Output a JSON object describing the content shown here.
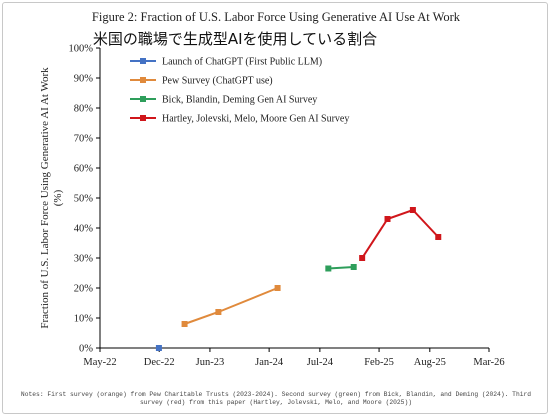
{
  "figure": {
    "title": "Figure 2: Fraction of U.S. Labor Force Using Generative AI Use At Work",
    "subtitle": "米国の職場で生成型AIを使用している割合",
    "notes": "Notes: First survey (orange) from Pew Charitable Trusts (2023-2024). Second survey (green) from Bick, Blandin, and Deming (2024). Third survey (red) from this paper (Hartley, Jolevski, Melo, and Moore (2025))"
  },
  "chart_data": {
    "type": "line",
    "title": "Figure 2: Fraction of U.S. Labor Force Using Generative AI Use At Work",
    "xlabel": "",
    "ylabel": "Fraction of U.S. Labor Force Using Generative AI At Work (%)",
    "ylim": [
      0,
      100
    ],
    "xlim": [
      "2022-05",
      "2026-03"
    ],
    "y_ticks": [
      "0%",
      "10%",
      "20%",
      "30%",
      "40%",
      "50%",
      "60%",
      "70%",
      "80%",
      "90%",
      "100%"
    ],
    "x_ticks": [
      {
        "date": "2022-05",
        "label": "May-22"
      },
      {
        "date": "2022-12",
        "label": "Dec-22"
      },
      {
        "date": "2023-06",
        "label": "Jun-23"
      },
      {
        "date": "2024-01",
        "label": "Jan-24"
      },
      {
        "date": "2024-07",
        "label": "Jul-24"
      },
      {
        "date": "2025-02",
        "label": "Feb-25"
      },
      {
        "date": "2025-08",
        "label": "Aug-25"
      },
      {
        "date": "2026-03",
        "label": "Mar-26"
      }
    ],
    "grid": false,
    "legend_position": "top-left",
    "series": [
      {
        "name": "Launch of ChatGPT (First Public LLM)",
        "color": "#4472c4",
        "marker": "square",
        "points": [
          {
            "x": "2022-11-30",
            "y": 0
          }
        ]
      },
      {
        "name": "Pew Survey (ChatGPT use)",
        "color": "#e08a3c",
        "marker": "square",
        "points": [
          {
            "x": "2023-03",
            "y": 8
          },
          {
            "x": "2023-07",
            "y": 12
          },
          {
            "x": "2024-02",
            "y": 20
          }
        ]
      },
      {
        "name": "Bick, Blandin, Deming Gen AI Survey",
        "color": "#2e9e5b",
        "marker": "square",
        "points": [
          {
            "x": "2024-08",
            "y": 26.5
          },
          {
            "x": "2024-11",
            "y": 27
          }
        ]
      },
      {
        "name": "Hartley, Jolevski, Melo, Moore Gen AI Survey",
        "color": "#d0161b",
        "marker": "square",
        "points": [
          {
            "x": "2024-12",
            "y": 30
          },
          {
            "x": "2025-03",
            "y": 43
          },
          {
            "x": "2025-06",
            "y": 46
          },
          {
            "x": "2025-09",
            "y": 37
          }
        ]
      }
    ]
  }
}
